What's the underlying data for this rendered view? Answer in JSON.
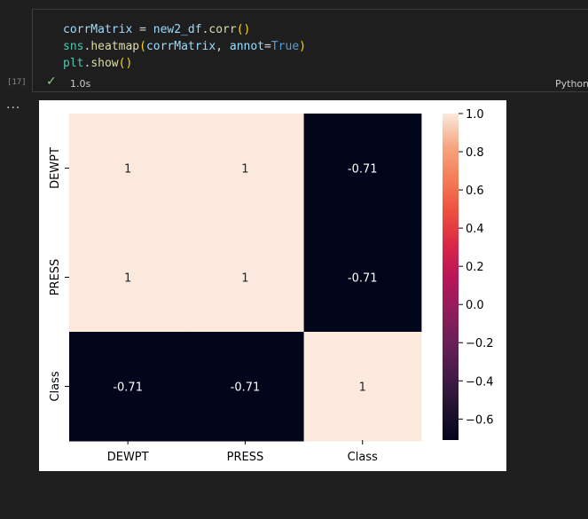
{
  "cell": {
    "execution_count": "[17]",
    "status_time": "1.0s",
    "language": "Python",
    "more_label": "...",
    "code": {
      "line1": {
        "var": "corrMatrix",
        "op": " = ",
        "obj": "new2_df",
        "dot": ".",
        "fn": "corr",
        "args": "()"
      },
      "line2": {
        "mod": "sns",
        "dot": ".",
        "fn": "heatmap",
        "open": "(",
        "arg": "corrMatrix",
        "sep": ", ",
        "kwarg": "annot",
        "eq": "=",
        "val": "True",
        "close": ")"
      },
      "line3": {
        "mod": "plt",
        "dot": ".",
        "fn": "show",
        "args": "()"
      }
    }
  },
  "chart_data": {
    "type": "heatmap",
    "x_labels": [
      "DEWPT",
      "PRESS",
      "Class"
    ],
    "y_labels": [
      "DEWPT",
      "PRESS",
      "Class"
    ],
    "values": [
      [
        1,
        1,
        -0.71
      ],
      [
        1,
        1,
        -0.71
      ],
      [
        -0.71,
        -0.71,
        1
      ]
    ],
    "annotations": [
      [
        "1",
        "1",
        "-0.71"
      ],
      [
        "1",
        "1",
        "-0.71"
      ],
      [
        "-0.71",
        "-0.71",
        "1"
      ]
    ],
    "colorbar": {
      "vmin": -0.71,
      "vmax": 1.0,
      "ticks": [
        1.0,
        0.8,
        0.6,
        0.4,
        0.2,
        0.0,
        -0.2,
        -0.4,
        -0.6
      ],
      "tick_labels": [
        "1.0",
        "0.8",
        "0.6",
        "0.4",
        "0.2",
        "0.0",
        "−0.2",
        "−0.4",
        "−0.6"
      ],
      "colormap": "rocket",
      "color_high": "#fae9dc",
      "color_low": "#03051a"
    }
  }
}
